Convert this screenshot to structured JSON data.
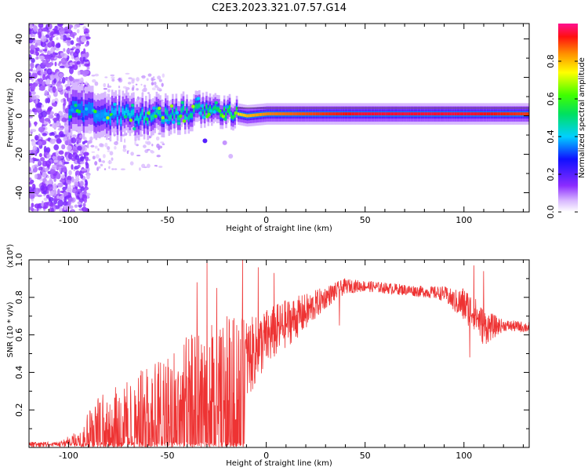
{
  "title": "C2E3.2023.321.07.57.G14",
  "colors": {
    "snr_line": "#ee3333",
    "spectrogram_low": "#7b2cff",
    "spectrogram_high": "#ff2020",
    "axis": "#000000"
  },
  "chart_data": [
    {
      "type": "heatmap",
      "xlabel": "Height of straight line (km)",
      "ylabel": "Frequency (Hz)",
      "xlim": [
        -120,
        133
      ],
      "ylim": [
        -50,
        48
      ],
      "xticks": [
        -100,
        -50,
        0,
        50,
        100
      ],
      "yticks": [
        -40,
        -20,
        0,
        20,
        40
      ],
      "grid": false,
      "colorbar": {
        "label": "Normalized spectral amplitude",
        "range": [
          0,
          1
        ],
        "ticks": [
          0.0,
          0.2,
          0.4,
          0.6,
          0.8
        ],
        "colormap": "rainbow (purple-blue-cyan-green-yellow-red-magenta)"
      },
      "ridge": [
        {
          "x": -95,
          "f": 2,
          "amp": 0.45
        },
        {
          "x": -80,
          "f": 0,
          "amp": 0.5
        },
        {
          "x": -60,
          "f": 0,
          "amp": 0.6
        },
        {
          "x": -40,
          "f": 2,
          "amp": 0.65
        },
        {
          "x": -25,
          "f": 3,
          "amp": 0.7
        },
        {
          "x": -10,
          "f": 0,
          "amp": 0.8
        },
        {
          "x": 0,
          "f": 1,
          "amp": 0.85
        },
        {
          "x": 25,
          "f": 1,
          "amp": 0.9
        },
        {
          "x": 50,
          "f": 1,
          "amp": 0.95
        },
        {
          "x": 75,
          "f": 1,
          "amp": 0.95
        },
        {
          "x": 100,
          "f": 1,
          "amp": 0.95
        },
        {
          "x": 133,
          "f": 1,
          "amp": 0.9
        }
      ]
    },
    {
      "type": "line",
      "xlabel": "Height of straight line (km)",
      "ylabel": "SNR (10 * v/v)",
      "yexponent": "(x10⁴)",
      "xlim": [
        -120,
        133
      ],
      "ylim": [
        0,
        1.0
      ],
      "xticks": [
        -100,
        -50,
        0,
        50,
        100
      ],
      "yticks": [
        0.2,
        0.4,
        0.6,
        0.8,
        1.0
      ],
      "grid": false,
      "envelope": {
        "x": [
          -120,
          -105,
          -95,
          -90,
          -85,
          -80,
          -70,
          -60,
          -50,
          -40,
          -30,
          -20,
          -11,
          -5,
          0,
          10,
          20,
          30,
          40,
          50,
          60,
          70,
          80,
          90,
          95,
          100,
          105,
          110,
          120,
          133
        ],
        "mean": [
          0.02,
          0.02,
          0.05,
          0.12,
          0.15,
          0.17,
          0.2,
          0.24,
          0.27,
          0.3,
          0.33,
          0.37,
          0.45,
          0.52,
          0.58,
          0.66,
          0.72,
          0.8,
          0.86,
          0.86,
          0.85,
          0.84,
          0.83,
          0.82,
          0.78,
          0.76,
          0.72,
          0.64,
          0.65,
          0.64
        ],
        "amp": [
          0.008,
          0.01,
          0.04,
          0.1,
          0.12,
          0.13,
          0.16,
          0.2,
          0.24,
          0.3,
          0.32,
          0.33,
          0.24,
          0.18,
          0.16,
          0.13,
          0.1,
          0.06,
          0.04,
          0.03,
          0.03,
          0.03,
          0.03,
          0.04,
          0.06,
          0.1,
          0.09,
          0.1,
          0.03,
          0.03
        ]
      },
      "spikes": [
        {
          "x": -30,
          "y": 1.0
        },
        {
          "x": -12,
          "y": 1.0
        },
        {
          "x": -35,
          "y": 0.88
        },
        {
          "x": -25,
          "y": 0.85
        },
        {
          "x": -4,
          "y": 0.96
        },
        {
          "x": 4,
          "y": 0.93
        },
        {
          "x": 105,
          "y": 0.97
        },
        {
          "x": 110,
          "y": 0.94
        },
        {
          "x": 37,
          "y": 0.65
        },
        {
          "x": 103,
          "y": 0.48
        }
      ]
    }
  ]
}
